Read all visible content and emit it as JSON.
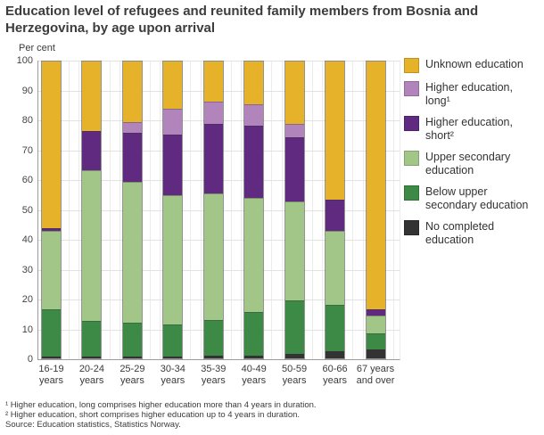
{
  "title": "Education level of refugees and reunited family members from Bosnia and Herzegovina, by age upon arrival",
  "y_axis_title": "Per cent",
  "colors": {
    "unknown": "#e6b229",
    "higher_long": "#b184bb",
    "higher_short": "#5f2a80",
    "upper_secondary": "#a2c687",
    "below_upper": "#3c8a46",
    "no_completed": "#333333",
    "grid": "#e2e2e2",
    "axis": "#9b9b9b"
  },
  "chart_data": {
    "type": "bar",
    "stacked": true,
    "title": "Education level of refugees and reunited family members from Bosnia and Herzegovina, by age upon arrival",
    "xlabel": "",
    "ylabel": "Per cent",
    "ylim": [
      0,
      100
    ],
    "ytick_step": 10,
    "grid": true,
    "legend_position": "right",
    "categories": [
      "16-19 years",
      "20-24 years",
      "25-29 years",
      "30-34 years",
      "35-39 years",
      "40-49 years",
      "50-59 years",
      "60-66 years",
      "67 years and over"
    ],
    "tick_labels": [
      "16-19\nyears",
      "20-24\nyears",
      "25-29\nyears",
      "30-34\nyears",
      "35-39\nyears",
      "40-49\nyears",
      "50-59\nyears",
      "60-66\nyears",
      "67 years\nand over"
    ],
    "series": [
      {
        "name": "No completed education",
        "color_key": "no_completed",
        "values": [
          0.5,
          0.5,
          0.5,
          0.5,
          1,
          1,
          1.5,
          2.5,
          3
        ]
      },
      {
        "name": "Below upper secondary education",
        "color_key": "below_upper",
        "values": [
          16,
          12,
          11.5,
          11,
          12,
          14.5,
          18,
          15.5,
          5.5
        ]
      },
      {
        "name": "Upper secondary education",
        "color_key": "upper_secondary",
        "values": [
          26.5,
          51,
          47.5,
          43.5,
          42.5,
          38.5,
          33.5,
          25,
          6
        ]
      },
      {
        "name": "Higher education, short",
        "color_key": "higher_short",
        "values": [
          1,
          13,
          16.5,
          20.5,
          23.5,
          24.5,
          21.5,
          10.5,
          2
        ]
      },
      {
        "name": "Higher education, long",
        "color_key": "higher_long",
        "values": [
          0,
          0,
          3.5,
          8.5,
          7.5,
          7,
          4.5,
          0,
          0
        ]
      },
      {
        "name": "Unknown education",
        "color_key": "unknown",
        "values": [
          56,
          23.5,
          20.5,
          16,
          13.5,
          14.5,
          21,
          46.5,
          83.5
        ]
      }
    ]
  },
  "legend": {
    "items": [
      {
        "label": "Unknown education",
        "color_key": "unknown"
      },
      {
        "label": "Higher education,\nlong¹",
        "color_key": "higher_long"
      },
      {
        "label": "Higher education,\nshort²",
        "color_key": "higher_short"
      },
      {
        "label": "Upper secondary\neducation",
        "color_key": "upper_secondary"
      },
      {
        "label": "Below upper\nsecondary education",
        "color_key": "below_upper"
      },
      {
        "label": "No completed\neducation",
        "color_key": "no_completed"
      }
    ]
  },
  "footnotes": [
    "¹ Higher education, long comprises higher education more than 4 years in duration.",
    "² Higher education, short comprises higher education up to 4 years in duration.",
    "Source: Education statistics, Statistics Norway."
  ]
}
